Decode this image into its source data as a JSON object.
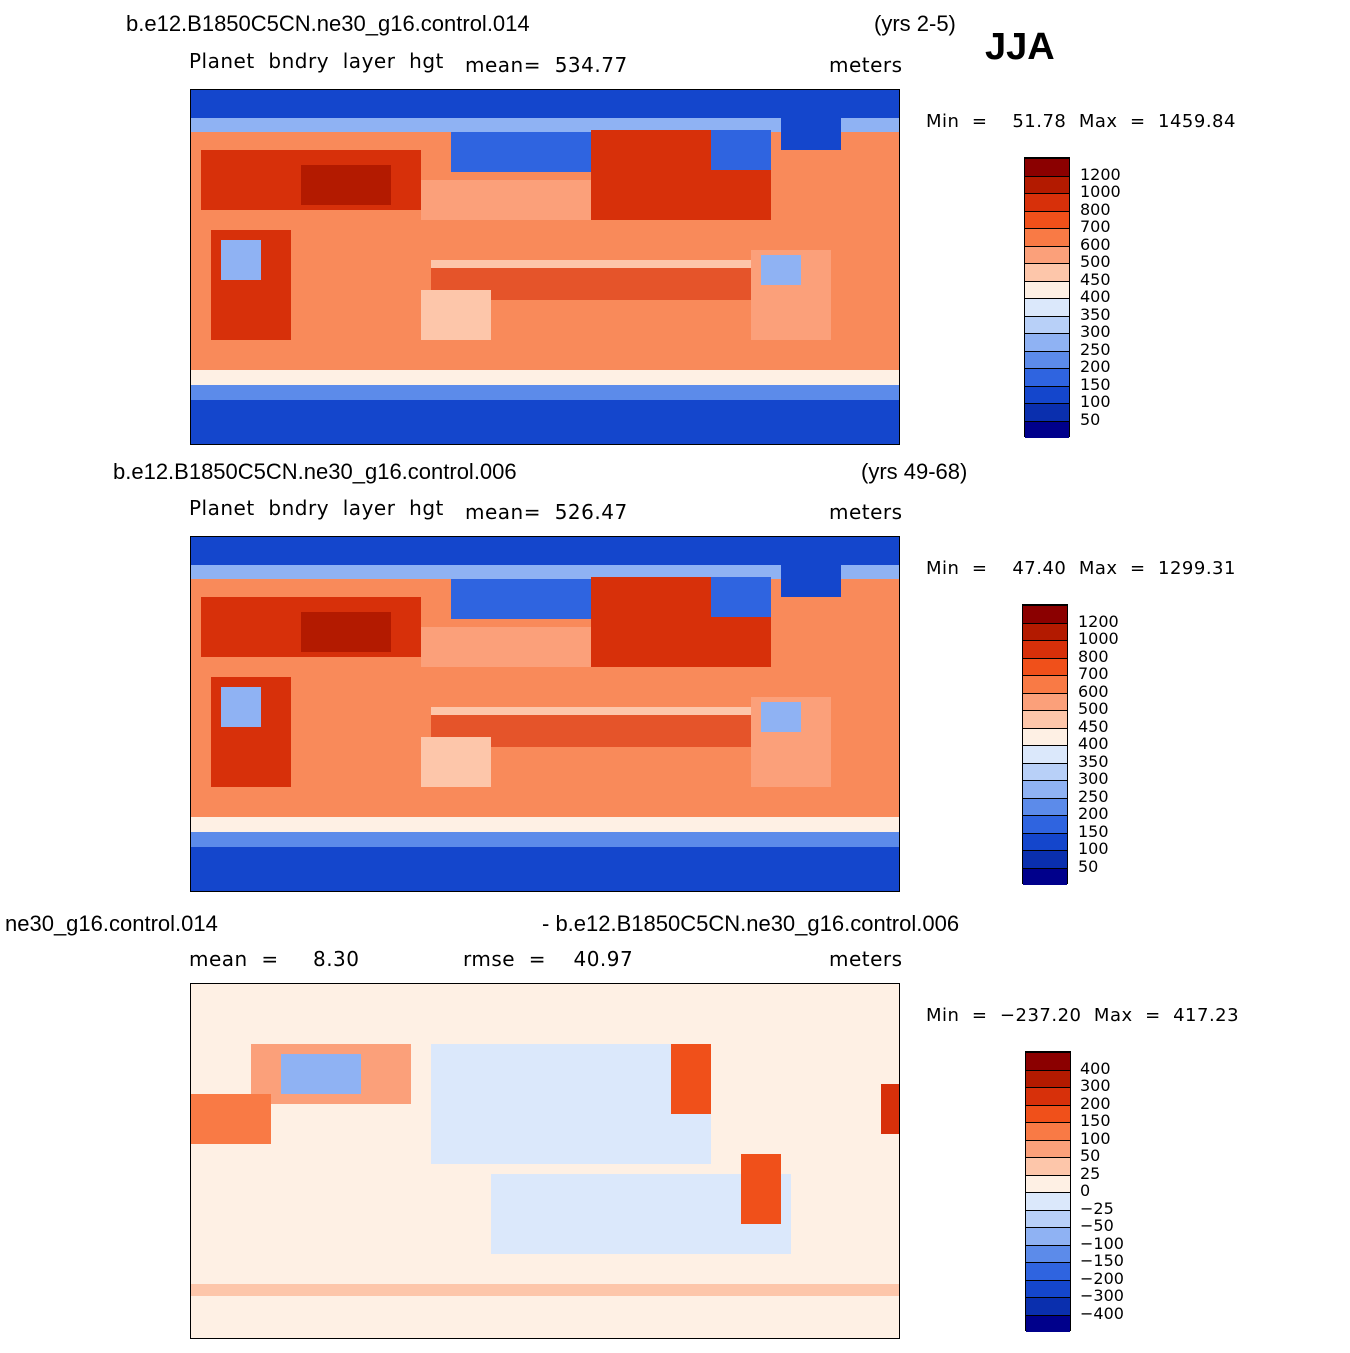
{
  "season": "JJA",
  "panels": [
    {
      "case": "b.e12.B1850C5CN.ne30_g16.control.014",
      "years": "(yrs 2-5)",
      "variable": "Planet  bndry  layer  hgt",
      "stat": "mean=  534.77",
      "units": "meters",
      "minmax": "Min  =    51.78  Max  =  1459.84",
      "colorbar": {
        "levels": [
          "1200",
          "1000",
          "800",
          "700",
          "600",
          "500",
          "450",
          "400",
          "350",
          "300",
          "250",
          "200",
          "150",
          "100",
          "50"
        ],
        "colors": [
          "#8b0000",
          "#b31a00",
          "#d7300a",
          "#f0501a",
          "#f97a45",
          "#fba07a",
          "#fdc6aa",
          "#fef0e4",
          "#dbe8fb",
          "#b8d0f8",
          "#8fb2f3",
          "#5c8bea",
          "#2f64e0",
          "#1446cc",
          "#0a2fae",
          "#00008b"
        ]
      }
    },
    {
      "case": "b.e12.B1850C5CN.ne30_g16.control.006",
      "years": "(yrs 49-68)",
      "variable": "Planet  bndry  layer  hgt",
      "stat": "mean=  526.47",
      "units": "meters",
      "minmax": "Min  =    47.40  Max  =  1299.31",
      "colorbar": {
        "levels": [
          "1200",
          "1000",
          "800",
          "700",
          "600",
          "500",
          "450",
          "400",
          "350",
          "300",
          "250",
          "200",
          "150",
          "100",
          "50"
        ],
        "colors": [
          "#8b0000",
          "#b31a00",
          "#d7300a",
          "#f0501a",
          "#f97a45",
          "#fba07a",
          "#fdc6aa",
          "#fef0e4",
          "#dbe8fb",
          "#b8d0f8",
          "#8fb2f3",
          "#5c8bea",
          "#2f64e0",
          "#1446cc",
          "#0a2fae",
          "#00008b"
        ]
      }
    },
    {
      "case_left": "ne30_g16.control.014",
      "case_right": "- b.e12.B1850C5CN.ne30_g16.control.006",
      "stat_mean": "mean  =     8.30",
      "stat_rmse": "rmse  =    40.97",
      "units": "meters",
      "minmax": "Min  =  −237.20  Max  =  417.23",
      "colorbar": {
        "levels": [
          "400",
          "300",
          "200",
          "150",
          "100",
          "50",
          "25",
          "0",
          "−25",
          "−50",
          "−100",
          "−150",
          "−200",
          "−300",
          "−400"
        ],
        "colors": [
          "#8b0000",
          "#b31a00",
          "#d7300a",
          "#f0501a",
          "#f97a45",
          "#fba07a",
          "#fdc6aa",
          "#fef0e4",
          "#dbe8fb",
          "#b8d0f8",
          "#8fb2f3",
          "#5c8bea",
          "#2f64e0",
          "#1446cc",
          "#0a2fae",
          "#00008b"
        ]
      }
    }
  ],
  "chart_data": [
    {
      "type": "heatmap",
      "title": "b.e12.B1850C5CN.ne30_g16.control.014",
      "subtitle": "Planet bndry layer hgt",
      "units": "meters",
      "mean": 534.77,
      "min": 51.78,
      "max": 1459.84,
      "contour_levels": [
        50,
        100,
        150,
        200,
        250,
        300,
        350,
        400,
        450,
        500,
        600,
        700,
        800,
        1000,
        1200
      ]
    },
    {
      "type": "heatmap",
      "title": "b.e12.B1850C5CN.ne30_g16.control.006",
      "subtitle": "Planet bndry layer hgt",
      "units": "meters",
      "mean": 526.47,
      "min": 47.4,
      "max": 1299.31,
      "contour_levels": [
        50,
        100,
        150,
        200,
        250,
        300,
        350,
        400,
        450,
        500,
        600,
        700,
        800,
        1000,
        1200
      ]
    },
    {
      "type": "heatmap",
      "title": "ne30_g16.control.014 - b.e12.B1850C5CN.ne30_g16.control.006",
      "units": "meters",
      "mean": 8.3,
      "rmse": 40.97,
      "min": -237.2,
      "max": 417.23,
      "contour_levels": [
        -400,
        -300,
        -200,
        -150,
        -100,
        -50,
        -25,
        0,
        25,
        50,
        100,
        150,
        200,
        300,
        400
      ]
    }
  ]
}
